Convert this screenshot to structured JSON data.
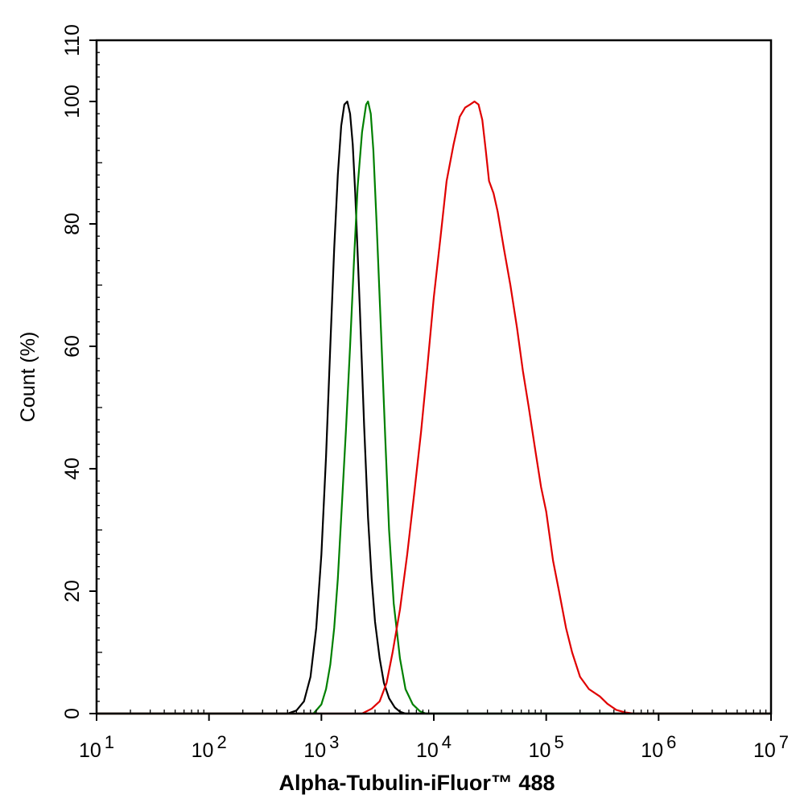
{
  "chart_data": {
    "type": "line",
    "title": "",
    "xlabel": "Alpha-Tubulin-iFluor™ 488",
    "ylabel": "Count  (%)",
    "x_scale": "log10",
    "xlim": [
      10,
      10000000
    ],
    "ylim": [
      0,
      110
    ],
    "x_ticks": [
      {
        "value": 10,
        "base": "10",
        "exp": "1"
      },
      {
        "value": 100,
        "base": "10",
        "exp": "2"
      },
      {
        "value": 1000,
        "base": "10",
        "exp": "3"
      },
      {
        "value": 10000,
        "base": "10",
        "exp": "4"
      },
      {
        "value": 100000,
        "base": "10",
        "exp": "5"
      },
      {
        "value": 1000000,
        "base": "10",
        "exp": "6"
      },
      {
        "value": 10000000,
        "base": "10",
        "exp": "7"
      }
    ],
    "y_ticks": [
      {
        "value": 0,
        "label": "0"
      },
      {
        "value": 20,
        "label": "20"
      },
      {
        "value": 40,
        "label": "40"
      },
      {
        "value": 60,
        "label": "60"
      },
      {
        "value": 80,
        "label": "80"
      },
      {
        "value": 100,
        "label": "100"
      },
      {
        "value": 110,
        "label": "110"
      }
    ],
    "grid": false,
    "legend": "none",
    "series": [
      {
        "color": "#000000",
        "points": [
          [
            10,
            0
          ],
          [
            500,
            0
          ],
          [
            600,
            0.5
          ],
          [
            700,
            2
          ],
          [
            800,
            6
          ],
          [
            900,
            14
          ],
          [
            1000,
            26
          ],
          [
            1100,
            42
          ],
          [
            1200,
            60
          ],
          [
            1300,
            76
          ],
          [
            1400,
            88
          ],
          [
            1500,
            96
          ],
          [
            1600,
            99.5
          ],
          [
            1700,
            100
          ],
          [
            1800,
            98
          ],
          [
            1900,
            93
          ],
          [
            2000,
            85
          ],
          [
            2200,
            66
          ],
          [
            2400,
            47
          ],
          [
            2600,
            32
          ],
          [
            2800,
            22
          ],
          [
            3000,
            15
          ],
          [
            3300,
            9
          ],
          [
            3600,
            5
          ],
          [
            4000,
            2.5
          ],
          [
            4500,
            1
          ],
          [
            5000,
            0.3
          ],
          [
            5600,
            0
          ],
          [
            10000000,
            0
          ]
        ]
      },
      {
        "color": "#008000",
        "points": [
          [
            10,
            0
          ],
          [
            850,
            0
          ],
          [
            1000,
            1.5
          ],
          [
            1100,
            4
          ],
          [
            1200,
            8
          ],
          [
            1300,
            14
          ],
          [
            1400,
            22
          ],
          [
            1500,
            32
          ],
          [
            1650,
            46
          ],
          [
            1800,
            60
          ],
          [
            1950,
            74
          ],
          [
            2100,
            86
          ],
          [
            2300,
            95
          ],
          [
            2500,
            99.5
          ],
          [
            2600,
            100
          ],
          [
            2750,
            98
          ],
          [
            2900,
            92
          ],
          [
            3100,
            80
          ],
          [
            3400,
            62
          ],
          [
            3700,
            45
          ],
          [
            4000,
            30
          ],
          [
            4400,
            18
          ],
          [
            5000,
            9
          ],
          [
            5600,
            4
          ],
          [
            6500,
            1.5
          ],
          [
            7500,
            0.4
          ],
          [
            8500,
            0
          ],
          [
            10000000,
            0
          ]
        ]
      },
      {
        "color": "#e00000",
        "points": [
          [
            10,
            0
          ],
          [
            2300,
            0
          ],
          [
            2800,
            0.8
          ],
          [
            3300,
            2
          ],
          [
            3800,
            5
          ],
          [
            4300,
            10
          ],
          [
            5000,
            17
          ],
          [
            5800,
            26
          ],
          [
            6700,
            36
          ],
          [
            7700,
            46
          ],
          [
            8800,
            57
          ],
          [
            10000,
            68
          ],
          [
            11500,
            78
          ],
          [
            13000,
            87
          ],
          [
            15000,
            93
          ],
          [
            17000,
            97.5
          ],
          [
            19000,
            99
          ],
          [
            21000,
            99.5
          ],
          [
            23000,
            100
          ],
          [
            25000,
            99.5
          ],
          [
            27000,
            97
          ],
          [
            29000,
            92
          ],
          [
            31000,
            87
          ],
          [
            34000,
            85
          ],
          [
            37000,
            82
          ],
          [
            42000,
            76
          ],
          [
            48000,
            70
          ],
          [
            55000,
            63
          ],
          [
            62000,
            56
          ],
          [
            70000,
            50
          ],
          [
            80000,
            43
          ],
          [
            90000,
            37
          ],
          [
            100000,
            33
          ],
          [
            115000,
            25
          ],
          [
            130000,
            20
          ],
          [
            150000,
            14
          ],
          [
            170000,
            10
          ],
          [
            200000,
            6
          ],
          [
            240000,
            4
          ],
          [
            300000,
            2.8
          ],
          [
            350000,
            1.6
          ],
          [
            420000,
            0.6
          ],
          [
            500000,
            0.2
          ],
          [
            600000,
            0
          ],
          [
            10000000,
            0
          ]
        ]
      }
    ]
  }
}
